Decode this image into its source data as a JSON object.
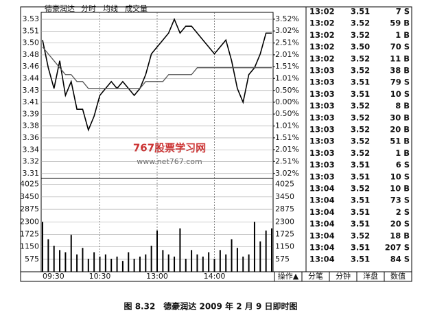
{
  "chart_data": {
    "type": "line",
    "title": "德豪润达",
    "categories": [
      "09:30",
      null,
      null,
      null,
      null,
      null,
      null,
      null,
      null,
      null,
      "10:30",
      null,
      null,
      null,
      null,
      null,
      null,
      null,
      null,
      null,
      "13:00",
      null,
      null,
      null,
      null,
      null,
      null,
      null,
      null,
      null,
      "14:00",
      null,
      null,
      null,
      null,
      null,
      null,
      null,
      null,
      null,
      null
    ],
    "series": [
      {
        "name": "分时",
        "color": "#000000",
        "values": [
          3.5,
          3.46,
          3.43,
          3.47,
          3.42,
          3.44,
          3.4,
          3.4,
          3.37,
          3.39,
          3.42,
          3.43,
          3.44,
          3.43,
          3.44,
          3.43,
          3.42,
          3.43,
          3.45,
          3.48,
          3.49,
          3.5,
          3.51,
          3.53,
          3.51,
          3.52,
          3.52,
          3.51,
          3.5,
          3.49,
          3.48,
          3.49,
          3.5,
          3.47,
          3.43,
          3.41,
          3.45,
          3.46,
          3.48,
          3.51,
          3.51
        ]
      },
      {
        "name": "均线",
        "color": "#555555",
        "values": [
          3.49,
          3.48,
          3.47,
          3.46,
          3.45,
          3.45,
          3.44,
          3.44,
          3.43,
          3.43,
          3.43,
          3.43,
          3.43,
          3.43,
          3.43,
          3.43,
          3.43,
          3.43,
          3.44,
          3.44,
          3.44,
          3.44,
          3.45,
          3.45,
          3.45,
          3.45,
          3.45,
          3.46,
          3.46,
          3.46,
          3.46,
          3.46,
          3.46,
          3.46,
          3.46,
          3.46,
          3.46,
          3.46,
          3.46,
          3.46,
          3.46
        ]
      },
      {
        "name": "成交量",
        "color": "#000000",
        "axis": "y3",
        "values": [
          2300,
          1500,
          1200,
          1000,
          900,
          1700,
          800,
          1100,
          600,
          900,
          700,
          800,
          600,
          700,
          500,
          900,
          600,
          700,
          800,
          1200,
          1900,
          1000,
          800,
          700,
          2000,
          600,
          1000,
          800,
          700,
          900,
          600,
          1000,
          800,
          1500,
          1100,
          700,
          800,
          2300,
          1400,
          1900,
          2000
        ]
      }
    ],
    "ylim": [
      3.3,
      3.54
    ],
    "yticks": [
      {
        "value": 3.53005,
        "label": "3.53"
      },
      {
        "value": 3.5129,
        "label": "3.51"
      },
      {
        "value": 3.49575,
        "label": "3.50"
      },
      {
        "value": 3.4786,
        "label": "3.48"
      },
      {
        "value": 3.46145,
        "label": "3.46"
      },
      {
        "value": 3.4443,
        "label": "3.44"
      },
      {
        "value": 3.42715,
        "label": "3.43"
      },
      {
        "value": 3.41,
        "label": "3.41"
      },
      {
        "value": 3.39285,
        "label": "3.39"
      },
      {
        "value": 3.3757,
        "label": "3.38"
      },
      {
        "value": 3.35855,
        "label": "3.36"
      },
      {
        "value": 3.3414,
        "label": "3.34"
      },
      {
        "value": 3.32425,
        "label": "3.32"
      },
      {
        "value": 3.3071,
        "label": "3.31"
      }
    ],
    "y2lim": [
      -3.23,
      3.81
    ],
    "y2ticks": [
      {
        "value": 3.52,
        "label": "3.52%"
      },
      {
        "value": 3.02,
        "label": "3.02%"
      },
      {
        "value": 2.51,
        "label": "2.51%"
      },
      {
        "value": 2.01,
        "label": "2.01%"
      },
      {
        "value": 1.51,
        "label": "1.51%"
      },
      {
        "value": 1.01,
        "label": "1.01%"
      },
      {
        "value": 0.5,
        "label": "0.50%"
      },
      {
        "value": 0,
        "label": "0.00%"
      },
      {
        "value": -0.5,
        "label": "0.50%"
      },
      {
        "value": -1.01,
        "label": "1.01%"
      },
      {
        "value": -1.51,
        "label": "1.51%"
      },
      {
        "value": -2.01,
        "label": "2.01%"
      },
      {
        "value": -2.51,
        "label": "2.51%"
      },
      {
        "value": -3.02,
        "label": "3.02%"
      }
    ],
    "y3lim": [
      0,
      4300
    ],
    "y3ticks": [
      4025,
      3450,
      2875,
      2300,
      1725,
      1150,
      575
    ],
    "grid": true
  },
  "trades": [
    [
      "13:02",
      "3.51",
      "7 S"
    ],
    [
      "13:02",
      "3.52",
      "59 B"
    ],
    [
      "13:02",
      "3.52",
      "1 B"
    ],
    [
      "13:02",
      "3.50",
      "70 S"
    ],
    [
      "13:02",
      "3.52",
      "11 B"
    ],
    [
      "13:03",
      "3.52",
      "38 B"
    ],
    [
      "13:03",
      "3.51",
      "79 S"
    ],
    [
      "13:03",
      "3.51",
      "10 S"
    ],
    [
      "13:03",
      "3.52",
      "8 B"
    ],
    [
      "13:03",
      "3.52",
      "30 B"
    ],
    [
      "13:03",
      "3.52",
      "20 B"
    ],
    [
      "13:03",
      "3.52",
      "51 B"
    ],
    [
      "13:03",
      "3.52",
      "1 B"
    ],
    [
      "13:03",
      "3.51",
      "6 S"
    ],
    [
      "13:03",
      "3.51",
      "10 S"
    ],
    [
      "13:04",
      "3.52",
      "10 B"
    ],
    [
      "13:04",
      "3.51",
      "73 S"
    ],
    [
      "13:04",
      "3.51",
      "2 S"
    ],
    [
      "13:04",
      "3.51",
      "20 S"
    ],
    [
      "13:04",
      "3.52",
      "18 B"
    ],
    [
      "13:04",
      "3.51",
      "207 S"
    ],
    [
      "13:04",
      "3.51",
      "84 S"
    ]
  ],
  "tabs": [
    "操作▲",
    "分笔",
    "分钟",
    "洋盘",
    "数值"
  ],
  "watermark": {
    "brand": "767股票学习网",
    "url": "www.net767.com"
  },
  "caption": "图 8.32　德豪润达 2009 年 2 月 9 日即时图"
}
